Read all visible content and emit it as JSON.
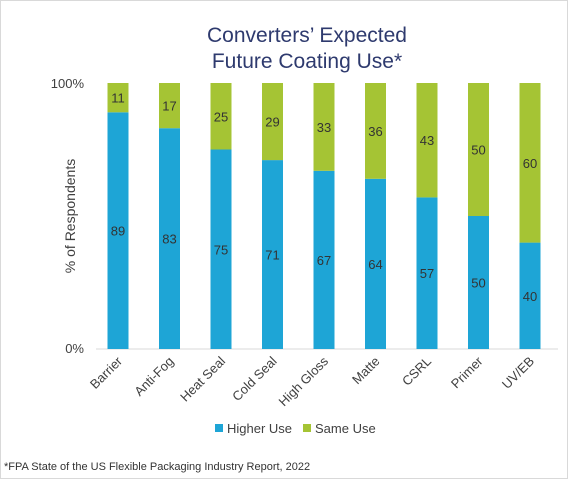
{
  "chart_data": {
    "type": "bar",
    "stacked": true,
    "title": [
      "Converters’ Expected",
      "Future Coating Use*"
    ],
    "ylabel": "% of Respondents",
    "xlabel": "",
    "ylim": [
      0,
      100
    ],
    "y_ticks": [
      "0%",
      "100%"
    ],
    "categories": [
      "Barrier",
      "Anti-Fog",
      "Heat Seal",
      "Cold Seal",
      "High Gloss",
      "Matte",
      "CSRL",
      "Primer",
      "UV/EB"
    ],
    "series": [
      {
        "name": "Higher Use",
        "color": "#1ea5d6",
        "values": [
          89,
          83,
          75,
          71,
          67,
          64,
          57,
          50,
          40
        ]
      },
      {
        "name": "Same Use",
        "color": "#a5c434",
        "values": [
          11,
          17,
          25,
          29,
          33,
          36,
          43,
          50,
          60
        ]
      }
    ],
    "legend_position": "bottom",
    "grid": false,
    "footnote": "*FPA State of the US Flexible Packaging Industry Report, 2022"
  }
}
